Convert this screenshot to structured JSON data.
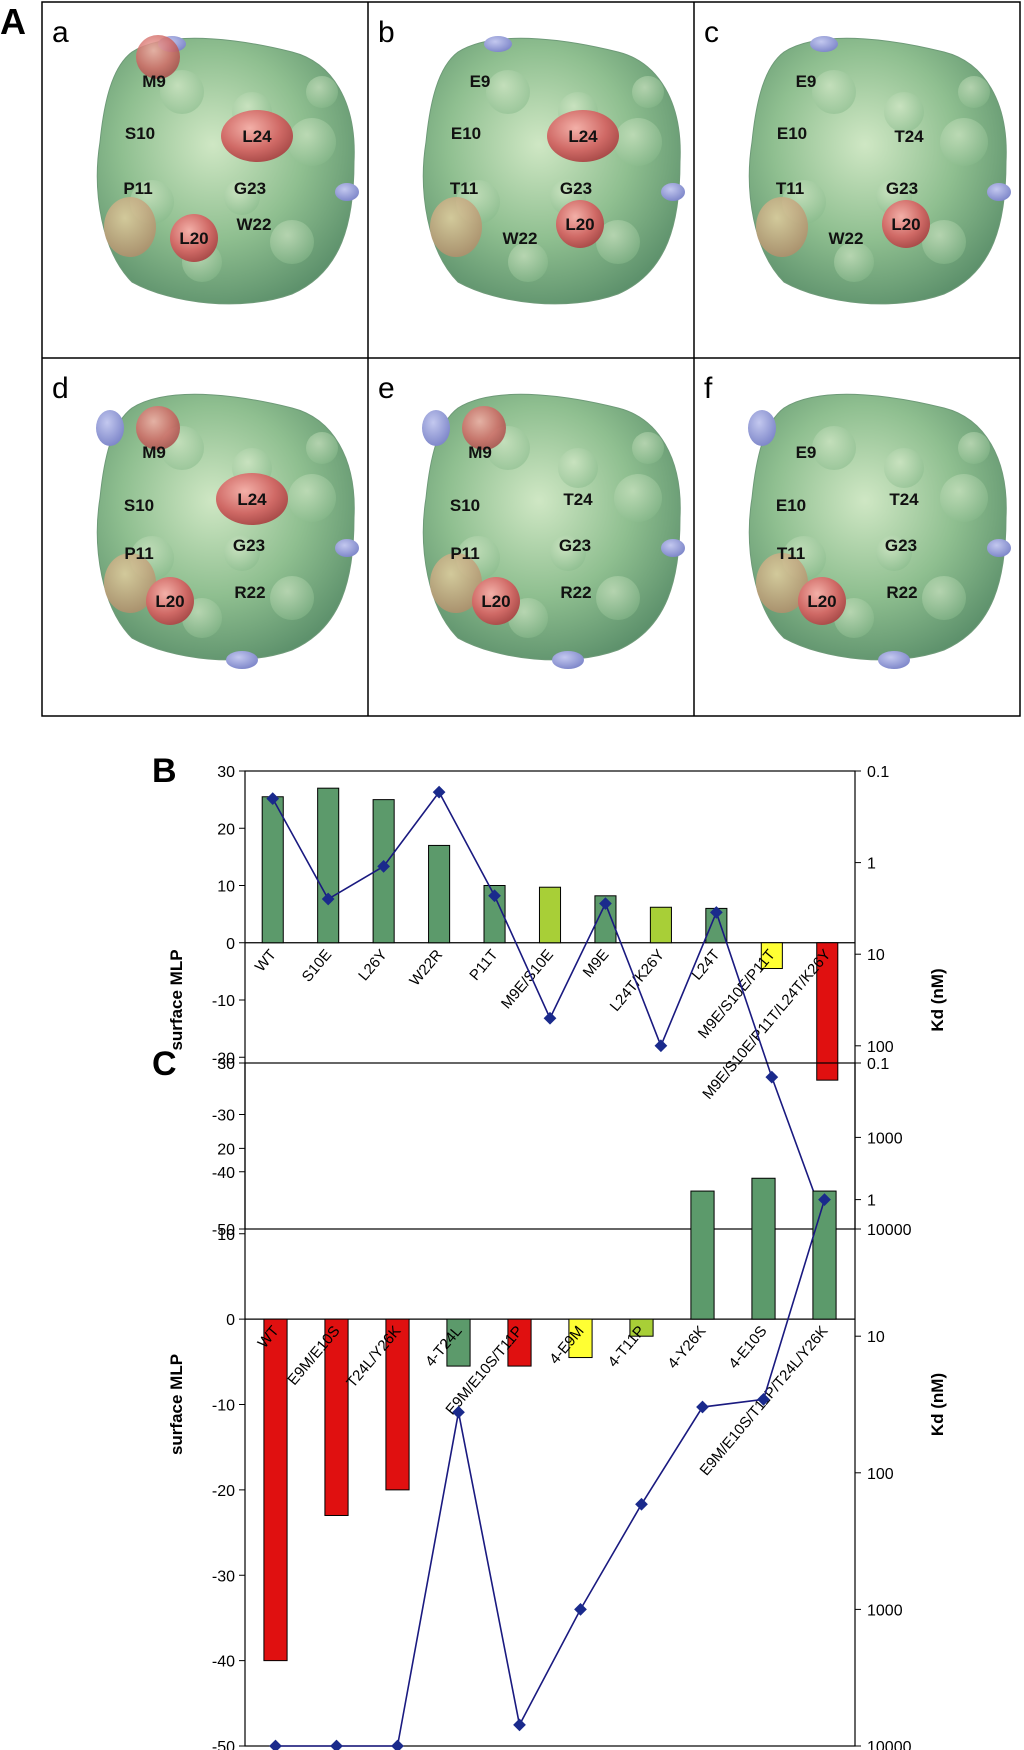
{
  "figure": {
    "panel_A_label": "A",
    "panel_B_label": "B",
    "panel_C_label": "C"
  },
  "surfaces": [
    {
      "label": "a",
      "residues": [
        "M9",
        "S10",
        "L24",
        "P11",
        "G23",
        "L20",
        "W22"
      ]
    },
    {
      "label": "b",
      "residues": [
        "E9",
        "E10",
        "L24",
        "T11",
        "G23",
        "W22",
        "L20"
      ]
    },
    {
      "label": "c",
      "residues": [
        "E9",
        "E10",
        "T24",
        "T11",
        "G23",
        "W22",
        "L20"
      ]
    },
    {
      "label": "d",
      "residues": [
        "M9",
        "L24",
        "S10",
        "P11",
        "G23",
        "R22",
        "L20"
      ]
    },
    {
      "label": "e",
      "residues": [
        "M9",
        "T24",
        "S10",
        "P11",
        "G23",
        "R22",
        "L20"
      ]
    },
    {
      "label": "f",
      "residues": [
        "E9",
        "T24",
        "E10",
        "T11",
        "G23",
        "R22",
        "L20"
      ]
    }
  ],
  "colors": {
    "green": "#5c9a6b",
    "light_green": "#a8cf37",
    "yellow": "#ffff33",
    "red": "#e01010",
    "line": "#1a1a80",
    "marker": "#1a2a8c"
  },
  "chart_data": [
    {
      "type": "bar",
      "panel": "B",
      "ylabel": "surface MLP",
      "y2label": "Kd (nM)",
      "ylim": [
        -50,
        30
      ],
      "yticks": [
        "30",
        "20",
        "10",
        "0",
        "-10",
        "-20",
        "-30",
        "-40",
        "-50"
      ],
      "y2_scale": "log",
      "y2lim": [
        0.1,
        10000
      ],
      "y2ticks": [
        "0.1",
        "1",
        "10",
        "100",
        "1000",
        "10000"
      ],
      "categories": [
        "WT",
        "S10E",
        "L26Y",
        "W22R",
        "P11T",
        "M9E/S10E",
        "M9E",
        "L24T/K26Y",
        "L24T",
        "M9E/S10E/P11T",
        "M9E/S10E/P11T/L24T/K26Y"
      ],
      "series": [
        {
          "type": "bar",
          "values": [
            25.5,
            27,
            25,
            17,
            10,
            9.7,
            8.2,
            6.2,
            6,
            -4.5,
            -24
          ],
          "colors": [
            "green",
            "green",
            "green",
            "green",
            "green",
            "light_green",
            "green",
            "light_green",
            "green",
            "yellow",
            "red"
          ]
        },
        {
          "type": "line",
          "axis": "right",
          "values": [
            0.2,
            2.5,
            1.1,
            0.17,
            2.3,
            50,
            2.8,
            100,
            3.5,
            220,
            10000
          ]
        }
      ]
    },
    {
      "type": "bar",
      "panel": "C",
      "ylabel": "surface MLP",
      "y2label": "Kd (nM)",
      "ylim": [
        -50,
        30
      ],
      "yticks": [
        "30",
        "20",
        "10",
        "0",
        "-10",
        "-20",
        "-30",
        "-40",
        "-50"
      ],
      "y2_scale": "log",
      "y2lim": [
        0.1,
        10000
      ],
      "y2ticks": [
        "0.1",
        "1",
        "10",
        "100",
        "1000",
        "10000"
      ],
      "categories": [
        "WT",
        "E9M/E10S",
        "T24L/Y26K",
        "4-T24L",
        "E9M/E10S/T11P",
        "4-E9M",
        "4-T11P",
        "4-Y26K",
        "4-E10S",
        "E9M/E10S/T11P/T24L/Y26K"
      ],
      "series": [
        {
          "type": "bar",
          "values": [
            -40,
            -23,
            -20,
            -5.5,
            -5.5,
            -4.5,
            -2,
            15,
            16.5,
            15
          ],
          "colors": [
            "red",
            "red",
            "red",
            "green",
            "red",
            "yellow",
            "light_green",
            "green",
            "green",
            "green"
          ]
        },
        {
          "type": "line",
          "axis": "right",
          "values": [
            10000,
            10000,
            10000,
            36,
            7000,
            1000,
            170,
            33,
            29,
            1
          ]
        }
      ]
    }
  ]
}
